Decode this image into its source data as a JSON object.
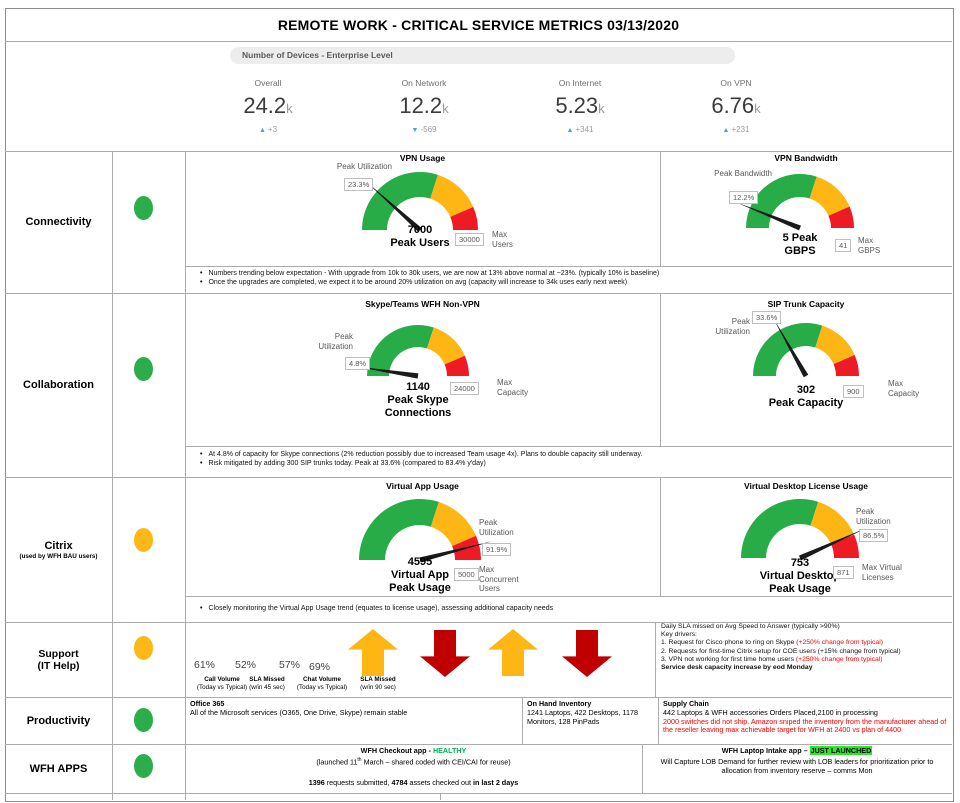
{
  "title": "REMOTE WORK - CRITICAL SERVICE METRICS 03/13/2020",
  "kpi_section": {
    "label": "Number of Devices - Enterprise Level",
    "cards": [
      {
        "label": "Overall",
        "value": "24.2",
        "suffix": "k",
        "arrow": "▲",
        "delta": "+3"
      },
      {
        "label": "On Network",
        "value": "12.2",
        "suffix": "k",
        "arrow": "▼",
        "delta": "-569"
      },
      {
        "label": "On Internet",
        "value": "5.23",
        "suffix": "k",
        "arrow": "▲",
        "delta": "+341"
      },
      {
        "label": "On VPN",
        "value": "6.76",
        "suffix": "k",
        "arrow": "▲",
        "delta": "+231"
      }
    ]
  },
  "rows": {
    "connectivity": {
      "label": "Connectivity",
      "status": "green"
    },
    "collaboration": {
      "label": "Collaboration",
      "status": "green"
    },
    "citrix": {
      "label": "Citrix",
      "sublabel": "(used by WFH BAU users)",
      "status": "amber"
    },
    "support": {
      "label": "Support\n(IT Help)",
      "status": "amber"
    },
    "productivity": {
      "label": "Productivity",
      "status": "green"
    },
    "wfh_apps": {
      "label": "WFH APPS",
      "status": "green"
    }
  },
  "chart_data": [
    {
      "type": "gauge",
      "title": "VPN Usage",
      "peak_label": "Peak Utilization",
      "peak_value": "23.3%",
      "center_text": "7000\nPeak Users",
      "max_value": "30000",
      "max_label": "Max\nUsers",
      "value_pct": 23.3,
      "segments": {
        "green": [
          0,
          60
        ],
        "amber": [
          60,
          87
        ],
        "red": [
          87,
          100
        ]
      }
    },
    {
      "type": "gauge",
      "title": "VPN Bandwidth",
      "peak_label": "Peak Bandwidth",
      "peak_value": "12.2%",
      "center_text": "5 Peak\nGBPS",
      "max_value": "41",
      "max_label": "Max\nGBPS",
      "value_pct": 12.2,
      "segments": {
        "green": [
          0,
          60
        ],
        "amber": [
          60,
          87
        ],
        "red": [
          87,
          100
        ]
      }
    },
    {
      "type": "gauge",
      "title": "Skype/Teams WFH Non-VPN",
      "peak_label": "Peak\nUtilization",
      "peak_value": "4.8%",
      "center_text": "1140\nPeak Skype\nConnections",
      "max_value": "24000",
      "max_label": "Max\nCapacity",
      "value_pct": 4.8,
      "segments": {
        "green": [
          0,
          60
        ],
        "amber": [
          60,
          87
        ],
        "red": [
          87,
          100
        ]
      }
    },
    {
      "type": "gauge",
      "title": "SIP Trunk Capacity",
      "peak_label": "Peak\nUtilization",
      "peak_value": "33.6%",
      "center_text": "302\nPeak Capacity",
      "max_value": "900",
      "max_label": "Max\nCapacity",
      "value_pct": 33.6,
      "segments": {
        "green": [
          0,
          60
        ],
        "amber": [
          60,
          87
        ],
        "red": [
          87,
          100
        ]
      }
    },
    {
      "type": "gauge",
      "title": "Virtual App Usage",
      "peak_label": "Peak\nUtilization",
      "peak_value": "91.9%",
      "center_text": "4595\nVirtual App\nPeak Usage",
      "max_value": "5000",
      "max_label": "Max\nConcurrent\nUsers",
      "value_pct": 91.9,
      "segments": {
        "green": [
          0,
          60
        ],
        "amber": [
          60,
          87
        ],
        "red": [
          87,
          100
        ]
      }
    },
    {
      "type": "gauge",
      "title": "Virtual Desktop License Usage",
      "peak_label": "Peak\nUtilization",
      "peak_value": "86.5%",
      "center_text": "753\nVirtual Desktop\nPeak Usage",
      "max_value": "871",
      "max_label": "Max Virtual\nLicenses",
      "value_pct": 86.5,
      "segments": {
        "green": [
          0,
          60
        ],
        "amber": [
          60,
          87
        ],
        "red": [
          87,
          100
        ]
      }
    }
  ],
  "notes": {
    "connectivity": [
      "Numbers trending below expectation - With upgrade from 10k to 30k users, we are now at 13% above normal at ~23%. (typically 10% is baseline)",
      "Once the upgrades are completed, we expect it to be around 20% utilization on avg (capacity will increase to 34k uses early next week)"
    ],
    "collaboration": [
      "At 4.8% of capacity for Skype connections (2% reduction possibly due to increased Team usage 4x). Plans to double capacity still underway.",
      "Risk mitigated by adding 300 SIP trunks today. Peak at 33.6% (compared to 83.4% y'day)"
    ],
    "citrix": [
      "Closely monitoring the Virtual App Usage trend (equates to license usage), assessing additional capacity needs"
    ]
  },
  "support": {
    "stats": [
      {
        "value": "61%",
        "label": "Call Volume",
        "sublabel": "(Today vs Typical)"
      },
      {
        "value": "52%",
        "label": "SLA Missed",
        "sublabel": "(w/in 45 sec)"
      },
      {
        "value": "57%",
        "label": "Chat Volume",
        "sublabel": "(Today vs Typical)"
      },
      {
        "value": "69%",
        "label": "SLA Missed",
        "sublabel": "(w/in 90 sec)"
      }
    ],
    "arrows": [
      {
        "direction": "up",
        "color": "amber"
      },
      {
        "direction": "down",
        "color": "dark_red"
      },
      {
        "direction": "up",
        "color": "amber"
      },
      {
        "direction": "down",
        "color": "dark_red"
      }
    ],
    "panel": {
      "line1": "Daily SLA missed on Avg Speed to Answer (typically >90%)",
      "line2": "Key drivers:",
      "driver1": "1. Request for Cisco phone to ring on Skype ",
      "driver1_red": "(+250% change from typical)",
      "driver2": "2. Requests for first-time Citrix setup for COE users (+15% change from typical)",
      "driver3": "3. VPN not working for first time home users ",
      "driver3_red": "(+250% change from typical)",
      "line6": "Service desk capacity increase by eod Monday"
    }
  },
  "productivity_cells": [
    {
      "heading": "Office 365",
      "body": "All of the Microsoft services (O365, One Drive, Skype) remain stable"
    },
    {
      "heading": "On Hand Inventory",
      "body": "1241 Laptops, 422 Desktops, 1178 Monitors, 128 PinPads"
    },
    {
      "heading": "Supply Chain",
      "body": "442 Laptops & WFH accessories Orders Placed,2100 in processing",
      "warning": "2000 switches did not ship. Amazon sniped the inventory from the manufacturer ahead of the reseller leaving max achievable target for WFH at 2400 vs plan of 4400"
    }
  ],
  "wfh_apps_content": {
    "checkout_title": "WFH Checkout app - ",
    "checkout_status": "HEALTHY",
    "launched_pre": "(launched 11",
    "launched_sup": "th",
    "launched_post": " March – shared coded with CEI/CAI for reuse)",
    "stats_bold1": "1396",
    "stats_mid1": " requests submitted, ",
    "stats_bold2": "4784",
    "stats_mid2": " assets checked out ",
    "stats_bold3": "in last 2 days",
    "intake_title": "WFH Laptop Intake app – ",
    "intake_status": "JUST LAUNCHED",
    "intake_body": "Will Capture LOB Demand for further review with LOB leaders for prioritization prior to allocation from inventory reserve – comms Mon"
  },
  "colors": {
    "green": "#28AC47",
    "amber": "#FDB614",
    "red": "#EE1B24",
    "dark_red": "#C00000",
    "status_green": "#2BAE4A",
    "status_amber": "#FBB816",
    "needle": "#1A1A1A",
    "delta_blue": "#4C9FD8",
    "text_red": "#FF0000",
    "text_green": "#00B050",
    "highlight_green": "#2FE32F"
  }
}
